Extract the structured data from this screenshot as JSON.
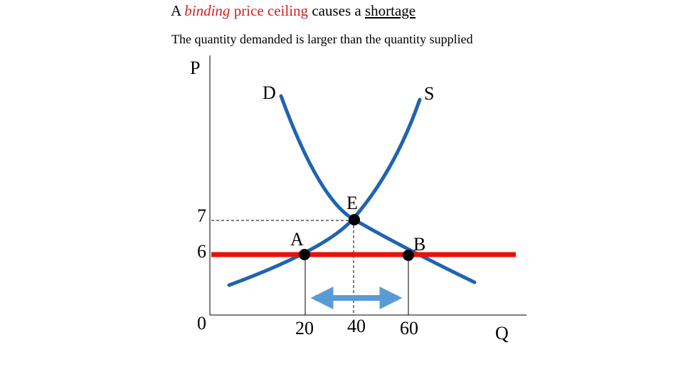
{
  "title": {
    "part1": "A ",
    "part2": "binding",
    "part3": " price ceiling",
    "part4": " causes a ",
    "part5": "shortage"
  },
  "subtitle": "The quantity demanded is larger than the quantity supplied",
  "axes": {
    "y_label": "P",
    "x_label": "Q"
  },
  "curves": {
    "demand_label": "D",
    "supply_label": "S"
  },
  "ticks": {
    "price": [
      "7",
      "6",
      "0"
    ],
    "quantity": [
      "20",
      "40",
      "60"
    ]
  },
  "points": {
    "equilibrium": "E",
    "supply_at_ceiling": "A",
    "demand_at_ceiling": "B"
  },
  "colors": {
    "curve": "#1f64b0",
    "ceiling": "#e8120c",
    "arrow": "#5b9bd5",
    "title_accent": "#d11f1f"
  }
}
